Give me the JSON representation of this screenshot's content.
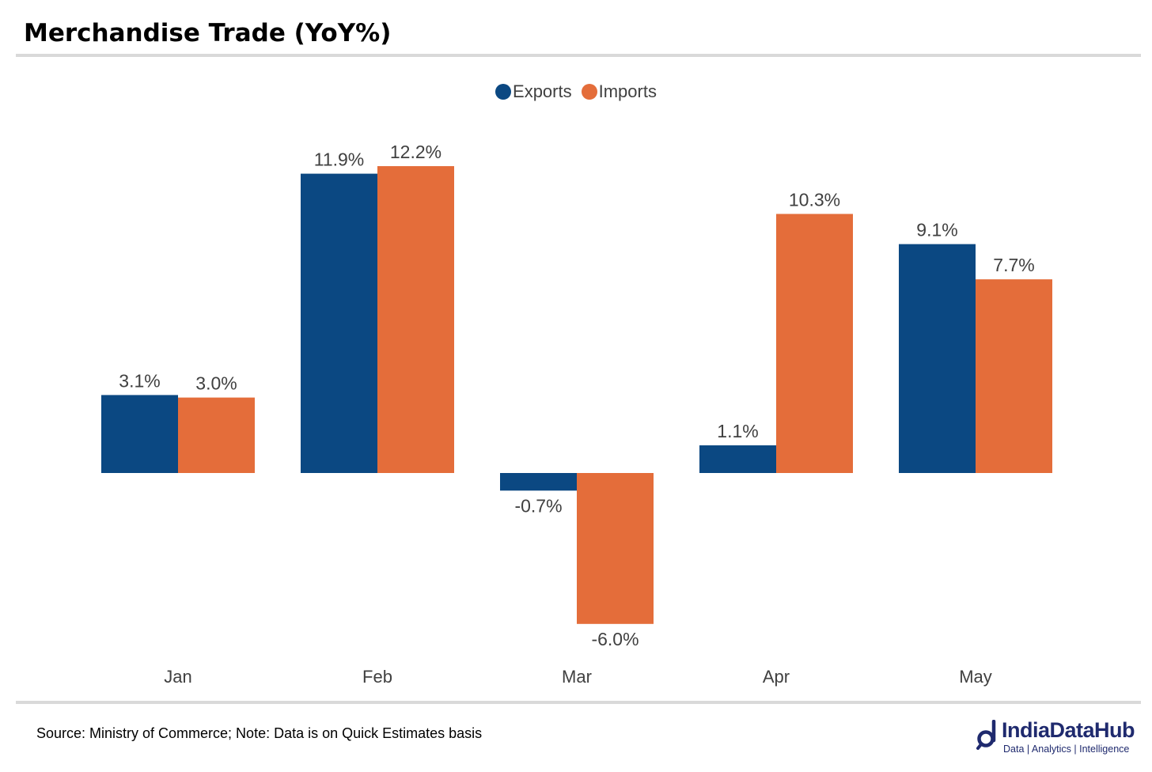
{
  "title": "Merchandise Trade (YoY%)",
  "legend": [
    {
      "label": "Exports",
      "color": "#0b4882"
    },
    {
      "label": "Imports",
      "color": "#e46d3a"
    }
  ],
  "chart_data": {
    "type": "bar",
    "title": "Merchandise Trade (YoY%)",
    "categories": [
      "Jan",
      "Feb",
      "Mar",
      "Apr",
      "May"
    ],
    "series": [
      {
        "name": "Exports",
        "color": "#0b4882",
        "values": [
          3.1,
          11.9,
          -0.7,
          1.1,
          9.1
        ],
        "labels": [
          "3.1%",
          "11.9%",
          "-0.7%",
          "1.1%",
          "9.1%"
        ]
      },
      {
        "name": "Imports",
        "color": "#e46d3a",
        "values": [
          3.0,
          12.2,
          -6.0,
          10.3,
          7.7
        ],
        "labels": [
          "3.0%",
          "12.2%",
          "-6.0%",
          "10.3%",
          "7.7%"
        ]
      }
    ],
    "xlabel": "",
    "ylabel": "",
    "ylim": [
      -6.5,
      13.5
    ],
    "grid": false,
    "legend_position": "top-center",
    "y_axis_visible": false
  },
  "footer": {
    "source": "Source: Ministry of Commerce; Note: Data is on Quick Estimates basis"
  },
  "logo": {
    "name": "IndiaDataHub",
    "tagline": "Data | Analytics | Intelligence"
  }
}
